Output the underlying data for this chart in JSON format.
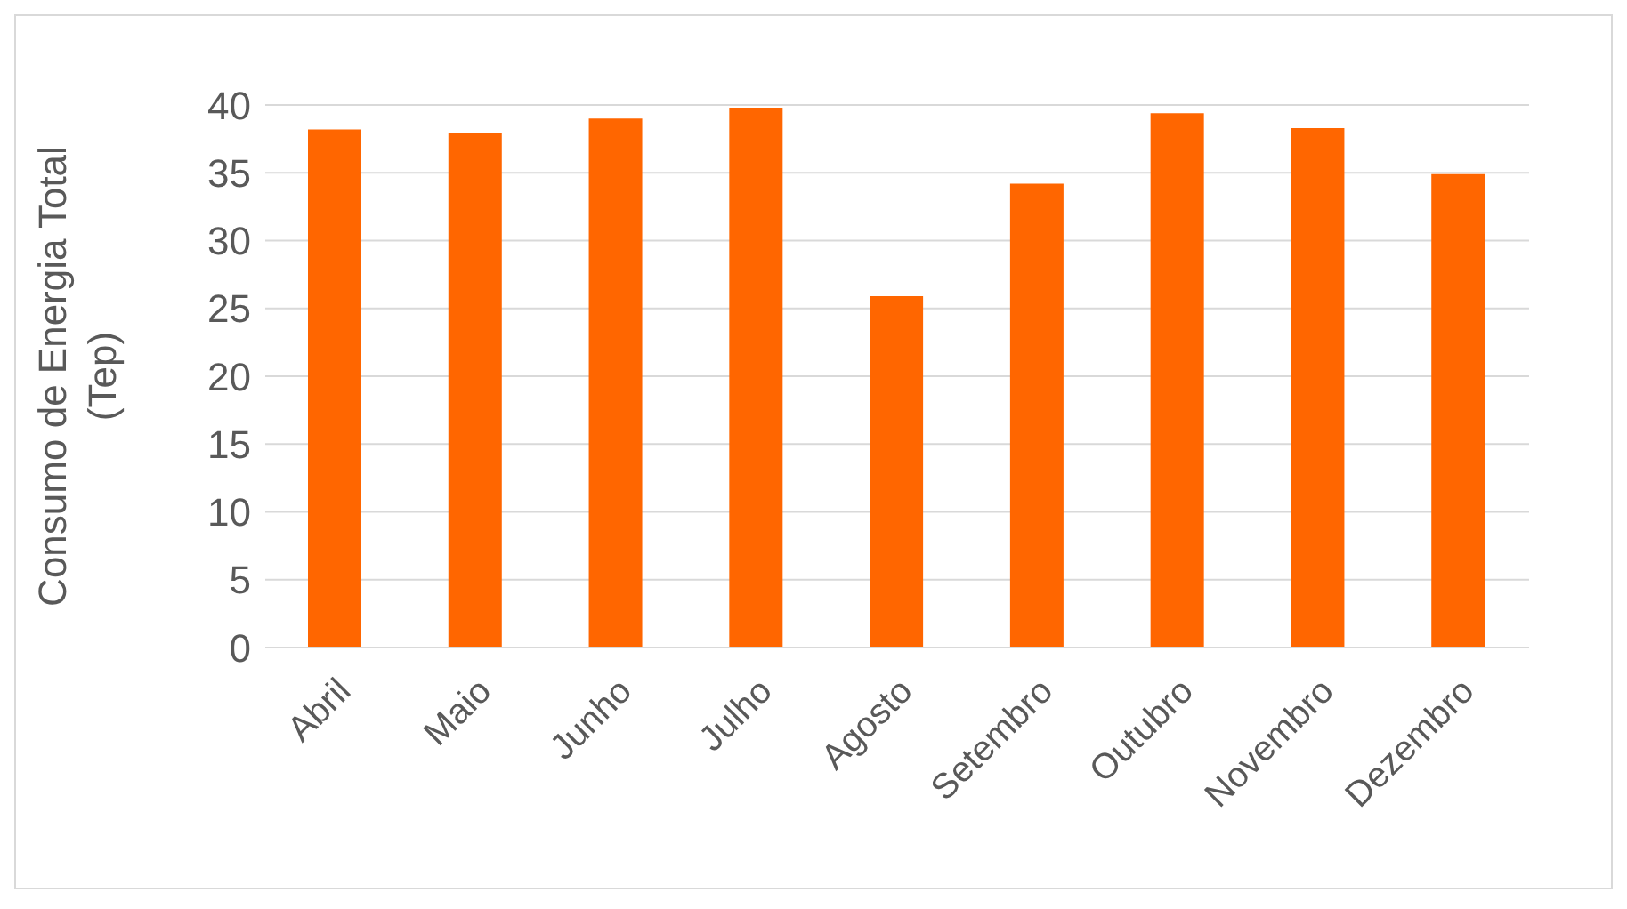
{
  "chart_data": {
    "type": "bar",
    "ylabel": "Consumo de Energia Total (Tep)",
    "categories": [
      "Abril",
      "Maio",
      "Junho",
      "Julho",
      "Agosto",
      "Setembro",
      "Outubro",
      "Novembro",
      "Dezembro"
    ],
    "values": [
      38.2,
      37.9,
      39,
      39.8,
      25.9,
      34.2,
      39.4,
      38.3,
      34.9
    ],
    "color": "#ff6600",
    "ylim": [
      0,
      40
    ],
    "yticks": [
      0,
      5,
      10,
      15,
      20,
      25,
      30,
      35,
      40
    ],
    "grid": "y",
    "legend": false
  }
}
